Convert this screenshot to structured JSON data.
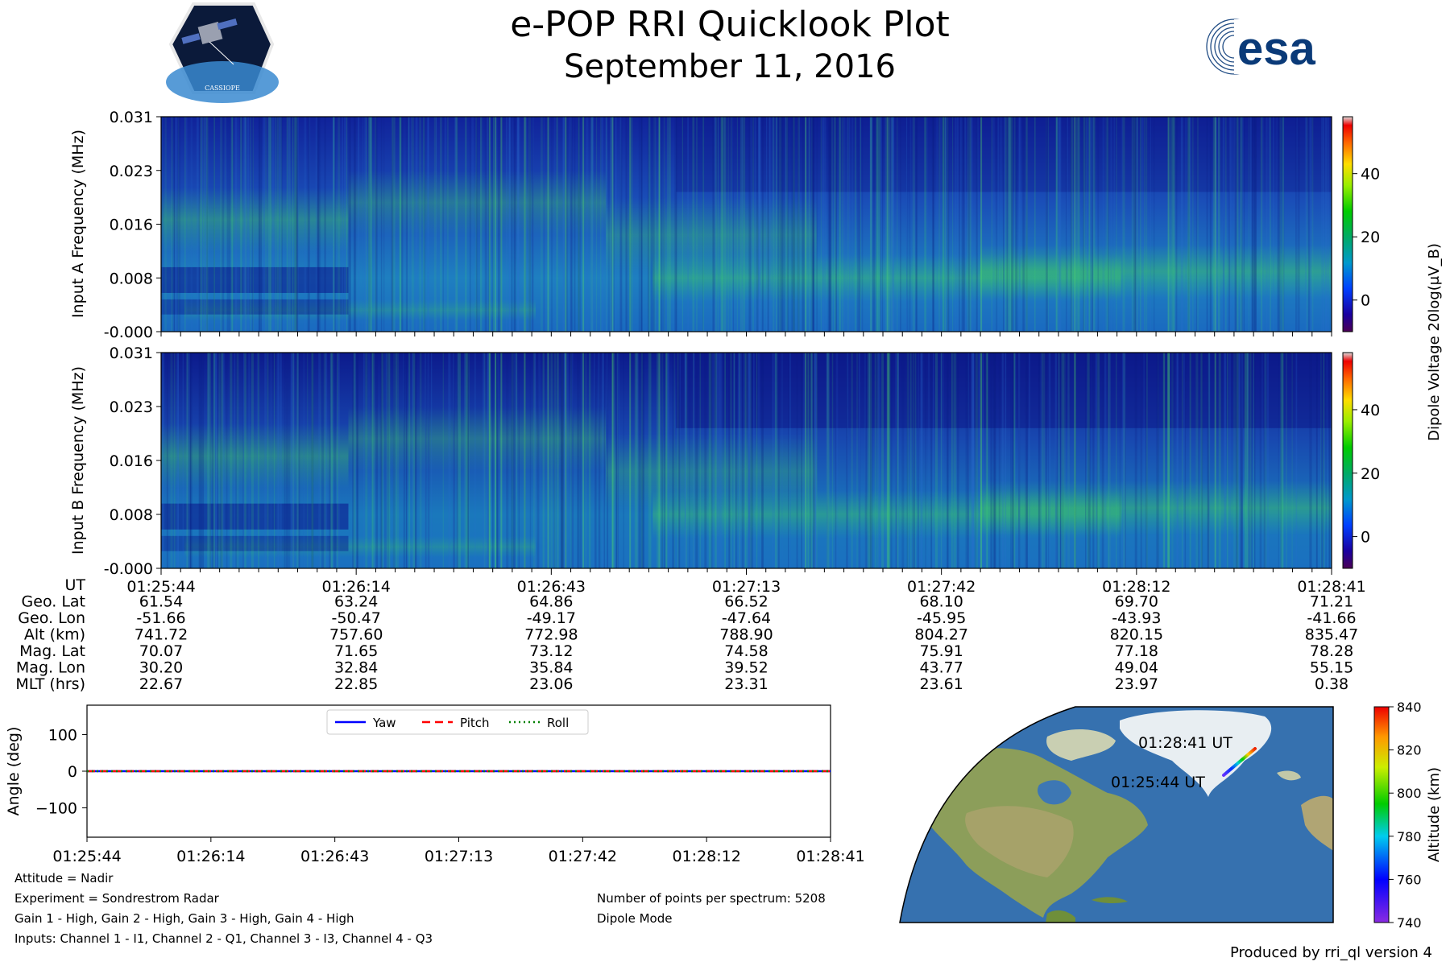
{
  "header": {
    "title": "e-POP RRI Quicklook Plot",
    "date": "September 11, 2016",
    "left_logo_text": "CASSIOPE",
    "right_logo_text": "esa"
  },
  "chart_data": [
    {
      "type": "heatmap",
      "id": "input_a",
      "ylabel": "Input A Frequency (MHz)",
      "y_ticks": [
        "-0.000",
        "0.008",
        "0.016",
        "0.023",
        "0.031"
      ],
      "ylim": [
        0,
        0.031
      ],
      "x_ticks": [
        "01:25:44",
        "01:26:14",
        "01:26:43",
        "01:27:13",
        "01:27:42",
        "01:28:12",
        "01:28:41"
      ],
      "colorbar": {
        "ticks": [
          0,
          20,
          40
        ],
        "range": [
          -10,
          58
        ],
        "label": "Dipole Voltage 20log(μV_B)"
      }
    },
    {
      "type": "heatmap",
      "id": "input_b",
      "ylabel": "Input B Frequency (MHz)",
      "y_ticks": [
        "-0.000",
        "0.008",
        "0.016",
        "0.023",
        "0.031"
      ],
      "ylim": [
        0,
        0.031
      ],
      "x_ticks": [
        "01:25:44",
        "01:26:14",
        "01:26:43",
        "01:27:13",
        "01:27:42",
        "01:28:12",
        "01:28:41"
      ],
      "colorbar": {
        "ticks": [
          0,
          20,
          40
        ],
        "range": [
          -10,
          58
        ]
      }
    },
    {
      "type": "line",
      "id": "attitude",
      "ylabel": "Angle (deg)",
      "ylim": [
        -180,
        180
      ],
      "y_ticks": [
        "100",
        "0",
        "−100"
      ],
      "y_tick_values": [
        100,
        0,
        -100
      ],
      "x_ticks": [
        "01:25:44",
        "01:26:14",
        "01:26:43",
        "01:27:13",
        "01:27:42",
        "01:28:12",
        "01:28:41"
      ],
      "series": [
        {
          "name": "Yaw",
          "color": "#0000ff",
          "style": "solid",
          "value": 0
        },
        {
          "name": "Pitch",
          "color": "#ff0000",
          "style": "dashed",
          "value": 0
        },
        {
          "name": "Roll",
          "color": "#008000",
          "style": "dotted",
          "value": 0
        }
      ]
    },
    {
      "type": "map",
      "id": "ground_track",
      "start_label": "01:25:44 UT",
      "end_label": "01:28:41 UT",
      "colorbar": {
        "label": "Altitude (km)",
        "ticks": [
          740,
          760,
          780,
          800,
          820,
          840
        ],
        "range": [
          740,
          840
        ]
      }
    }
  ],
  "ephemeris": {
    "labels": [
      "UT",
      "Geo. Lat",
      "Geo. Lon",
      "Alt (km)",
      "Mag. Lat",
      "Mag. Lon",
      "MLT (hrs)"
    ],
    "columns": [
      [
        "01:25:44",
        "61.54",
        "-51.66",
        "741.72",
        "70.07",
        "30.20",
        "22.67"
      ],
      [
        "01:26:14",
        "63.24",
        "-50.47",
        "757.60",
        "71.65",
        "32.84",
        "22.85"
      ],
      [
        "01:26:43",
        "64.86",
        "-49.17",
        "772.98",
        "73.12",
        "35.84",
        "23.06"
      ],
      [
        "01:27:13",
        "66.52",
        "-47.64",
        "788.90",
        "74.58",
        "39.52",
        "23.31"
      ],
      [
        "01:27:42",
        "68.10",
        "-45.95",
        "804.27",
        "75.91",
        "43.77",
        "23.61"
      ],
      [
        "01:28:12",
        "69.70",
        "-43.93",
        "820.15",
        "77.18",
        "49.04",
        "23.97"
      ],
      [
        "01:28:41",
        "71.21",
        "-41.66",
        "835.47",
        "78.28",
        "55.15",
        "0.38"
      ]
    ]
  },
  "info": {
    "attitude": "Attitude = Nadir",
    "experiment": "Experiment = Sondrestrom Radar",
    "gains": "Gain 1 - High, Gain 2 - High, Gain 3 - High, Gain 4 - High",
    "inputs": "Inputs: Channel 1 - I1, Channel 2 - Q1, Channel 3 - I3, Channel 4 - Q3",
    "points": "Number of points per spectrum: 5208",
    "mode": "Dipole Mode",
    "produced_by": "Produced by rri_ql version 4"
  }
}
